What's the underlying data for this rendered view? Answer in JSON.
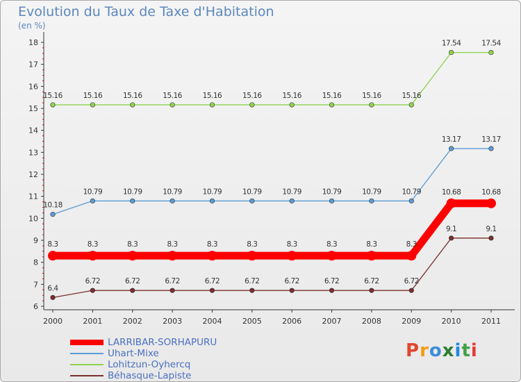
{
  "title": "Evolution du Taux de Taxe d'Habitation",
  "subtitle": "(en %)",
  "logo": "Proxiti",
  "chart_data": {
    "type": "line",
    "x": [
      "2000",
      "2001",
      "2002",
      "2003",
      "2004",
      "2005",
      "2006",
      "2007",
      "2008",
      "2009",
      "2010",
      "2011"
    ],
    "ylim": [
      6,
      18
    ],
    "yticks": [
      6,
      7,
      8,
      9,
      10,
      11,
      12,
      13,
      14,
      15,
      16,
      17,
      18
    ],
    "grid": false,
    "legend_position": "bottom-left",
    "series": [
      {
        "name": "LARRIBAR-SORHAPURU",
        "color": "#ff0000",
        "values": [
          8.3,
          8.3,
          8.3,
          8.3,
          8.3,
          8.3,
          8.3,
          8.3,
          8.3,
          8.3,
          10.68,
          10.68
        ],
        "labels": [
          "8.3",
          "8.3",
          "8.3",
          "8.3",
          "8.3",
          "8.3",
          "8.3",
          "8.3",
          "8.3",
          "8.3",
          "10.68",
          "10.68"
        ]
      },
      {
        "name": "Uhart-Mixe",
        "color": "#5b9bd5",
        "values": [
          10.18,
          10.79,
          10.79,
          10.79,
          10.79,
          10.79,
          10.79,
          10.79,
          10.79,
          10.79,
          13.17,
          13.17
        ],
        "labels": [
          "10.18",
          "10.79",
          "10.79",
          "10.79",
          "10.79",
          "10.79",
          "10.79",
          "10.79",
          "10.79",
          "10.79",
          "13.17",
          "13.17"
        ]
      },
      {
        "name": "Lohitzun-Oyhercq",
        "color": "#8fd14f",
        "values": [
          15.16,
          15.16,
          15.16,
          15.16,
          15.16,
          15.16,
          15.16,
          15.16,
          15.16,
          15.16,
          17.54,
          17.54
        ],
        "labels": [
          "15.16",
          "15.16",
          "15.16",
          "15.16",
          "15.16",
          "15.16",
          "15.16",
          "15.16",
          "15.16",
          "15.16",
          "17.54",
          "17.54"
        ]
      },
      {
        "name": "Béhasque-Lapiste",
        "color": "#7b2d2d",
        "values": [
          6.4,
          6.72,
          6.72,
          6.72,
          6.72,
          6.72,
          6.72,
          6.72,
          6.72,
          6.72,
          9.1,
          9.1
        ],
        "labels": [
          "6.4",
          "6.72",
          "6.72",
          "6.72",
          "6.72",
          "6.72",
          "6.72",
          "6.72",
          "6.72",
          "6.72",
          "9.1",
          "9.1"
        ]
      }
    ]
  }
}
